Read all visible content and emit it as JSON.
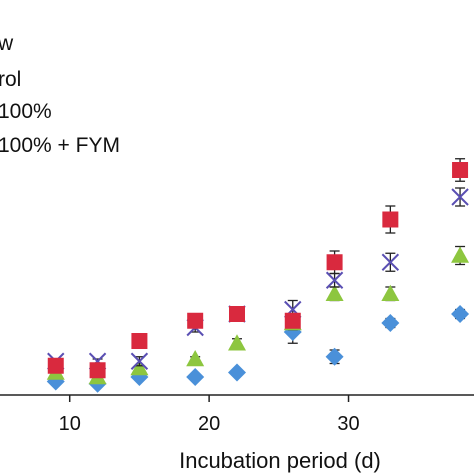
{
  "chart_data": {
    "type": "scatter",
    "title": "",
    "xlabel": "Incubation period (d)",
    "ylabel": "",
    "x_ticks": [
      10,
      20,
      30
    ],
    "xlim": [
      5,
      39
    ],
    "ylim": [
      0,
      100
    ],
    "grid": false,
    "legend_placement": "top-left",
    "legend_entries": [
      "w",
      "rol",
      "100%",
      "100% + FYM"
    ],
    "x": [
      9,
      12,
      15,
      19,
      22,
      26,
      29,
      33,
      38
    ],
    "series": [
      {
        "marker": "diamond",
        "color": "#4a90d9",
        "values": [
          6,
          5,
          8,
          8,
          10,
          28,
          17,
          32,
          36
        ],
        "errors": [
          1,
          1,
          1,
          1,
          1,
          5,
          3,
          2,
          2
        ]
      },
      {
        "marker": "triangle",
        "color": "#8dc63f",
        "values": [
          10,
          8,
          12,
          16,
          23,
          32,
          45,
          45,
          62
        ],
        "errors": [
          1,
          1,
          1,
          1,
          2,
          3,
          3,
          3,
          4
        ]
      },
      {
        "marker": "x",
        "color": "#5a4fb3",
        "values": [
          15,
          15,
          15,
          30,
          36,
          38,
          51,
          59,
          88
        ],
        "errors": [
          1,
          1,
          2,
          2,
          3,
          4,
          3,
          4,
          4
        ]
      },
      {
        "marker": "square",
        "color": "#d9293e",
        "values": [
          13,
          11,
          24,
          33,
          36,
          33,
          59,
          78,
          100
        ],
        "errors": [
          1,
          1,
          1,
          2,
          3,
          2,
          5,
          6,
          5
        ]
      }
    ]
  }
}
